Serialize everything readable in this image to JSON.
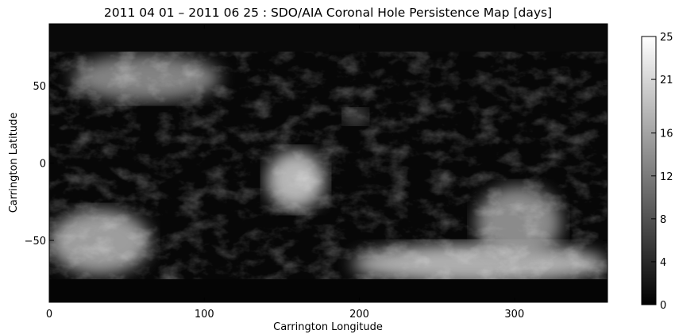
{
  "chart_data": {
    "type": "heatmap",
    "title": "2011 04 01 – 2011 06 25 : SDO/AIA Coronal Hole Persistence Map [days]",
    "xlabel": "Carrington Longitude",
    "ylabel": "Carrington Latitude",
    "xlim": [
      0,
      360
    ],
    "ylim": [
      -90,
      90
    ],
    "x_ticks": [
      "0",
      "100",
      "200",
      "300"
    ],
    "x_tick_values": [
      0,
      100,
      200,
      300
    ],
    "y_ticks": [
      "50",
      "0",
      "−50"
    ],
    "y_tick_values": [
      50,
      0,
      -50
    ],
    "colorbar": {
      "ticks": [
        "0",
        "4",
        "8",
        "12",
        "16",
        "21",
        "25"
      ],
      "tick_values": [
        0,
        4,
        8,
        12,
        16,
        21,
        25
      ],
      "range": [
        0,
        25
      ],
      "colormap": "grayscale"
    },
    "features": [
      {
        "name": "north-polar-region",
        "lon": [
          15,
          110
        ],
        "lat": [
          40,
          70
        ],
        "value": 15
      },
      {
        "name": "northern-mid-patch",
        "lon": [
          190,
          205
        ],
        "lat": [
          25,
          35
        ],
        "value": 12
      },
      {
        "name": "equatorial-hole",
        "lon": [
          140,
          178
        ],
        "lat": [
          -30,
          8
        ],
        "value": 21
      },
      {
        "name": "southern-west-region",
        "lon": [
          0,
          65
        ],
        "lat": [
          -72,
          -30
        ],
        "value": 18
      },
      {
        "name": "south-polar-band",
        "lon": [
          195,
          360
        ],
        "lat": [
          -78,
          -52
        ],
        "value": 20
      },
      {
        "name": "southern-east-patch",
        "lon": [
          275,
          330
        ],
        "lat": [
          -62,
          -15
        ],
        "value": 16
      }
    ]
  }
}
